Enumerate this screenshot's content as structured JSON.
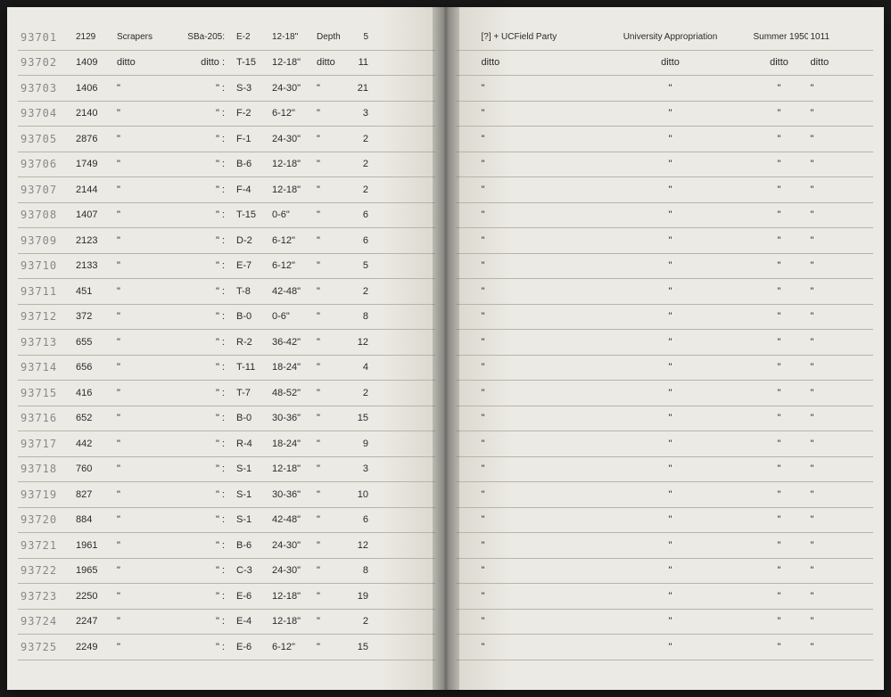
{
  "header": {
    "left": {
      "id": "93701",
      "num": "2129",
      "desc": "Scrapers",
      "site": "SBa-205:",
      "unit": "E-2",
      "depth": "12-18\"",
      "dw": "Depth",
      "ct": "5"
    },
    "right": {
      "coll": "[?] + UCField Party",
      "fund": "University Appropriation",
      "season": "Summer 1950",
      "lot": "1011"
    }
  },
  "rows": [
    {
      "id": "93702",
      "num": "1409",
      "desc": "ditto",
      "site": "ditto :",
      "unit": "T-15",
      "depth": "12-18\"",
      "dw": "ditto",
      "ct": "11",
      "coll": "ditto",
      "fund": "ditto",
      "season": "ditto",
      "lot": "ditto"
    },
    {
      "id": "93703",
      "num": "1406",
      "desc": "\"",
      "site": "\" :",
      "unit": "S-3",
      "depth": "24-30\"",
      "dw": "\"",
      "ct": "21",
      "coll": "\"",
      "fund": "\"",
      "season": "\"",
      "lot": "\""
    },
    {
      "id": "93704",
      "num": "2140",
      "desc": "\"",
      "site": "\" :",
      "unit": "F-2",
      "depth": "6-12\"",
      "dw": "\"",
      "ct": "3",
      "coll": "\"",
      "fund": "\"",
      "season": "\"",
      "lot": "\""
    },
    {
      "id": "93705",
      "num": "2876",
      "desc": "\"",
      "site": "\" :",
      "unit": "F-1",
      "depth": "24-30\"",
      "dw": "\"",
      "ct": "2",
      "coll": "\"",
      "fund": "\"",
      "season": "\"",
      "lot": "\""
    },
    {
      "id": "93706",
      "num": "1749",
      "desc": "\"",
      "site": "\" :",
      "unit": "B-6",
      "depth": "12-18\"",
      "dw": "\"",
      "ct": "2",
      "coll": "\"",
      "fund": "\"",
      "season": "\"",
      "lot": "\""
    },
    {
      "id": "93707",
      "num": "2144",
      "desc": "\"",
      "site": "\" :",
      "unit": "F-4",
      "depth": "12-18\"",
      "dw": "\"",
      "ct": "2",
      "coll": "\"",
      "fund": "\"",
      "season": "\"",
      "lot": "\""
    },
    {
      "id": "93708",
      "num": "1407",
      "desc": "\"",
      "site": "\" :",
      "unit": "T-15",
      "depth": "0-6\"",
      "dw": "\"",
      "ct": "6",
      "coll": "\"",
      "fund": "\"",
      "season": "\"",
      "lot": "\""
    },
    {
      "id": "93709",
      "num": "2123",
      "desc": "\"",
      "site": "\" :",
      "unit": "D-2",
      "depth": "6-12\"",
      "dw": "\"",
      "ct": "6",
      "coll": "\"",
      "fund": "\"",
      "season": "\"",
      "lot": "\""
    },
    {
      "id": "93710",
      "num": "2133",
      "desc": "\"",
      "site": "\" :",
      "unit": "E-7",
      "depth": "6-12\"",
      "dw": "\"",
      "ct": "5",
      "coll": "\"",
      "fund": "\"",
      "season": "\"",
      "lot": "\""
    },
    {
      "id": "93711",
      "num": "451",
      "desc": "\"",
      "site": "\" :",
      "unit": "T-8",
      "depth": "42-48\"",
      "dw": "\"",
      "ct": "2",
      "coll": "\"",
      "fund": "\"",
      "season": "\"",
      "lot": "\""
    },
    {
      "id": "93712",
      "num": "372",
      "desc": "\"",
      "site": "\" :",
      "unit": "B-0",
      "depth": "0-6\"",
      "dw": "\"",
      "ct": "8",
      "coll": "\"",
      "fund": "\"",
      "season": "\"",
      "lot": "\""
    },
    {
      "id": "93713",
      "num": "655",
      "desc": "\"",
      "site": "\" :",
      "unit": "R-2",
      "depth": "36-42\"",
      "dw": "\"",
      "ct": "12",
      "coll": "\"",
      "fund": "\"",
      "season": "\"",
      "lot": "\""
    },
    {
      "id": "93714",
      "num": "656",
      "desc": "\"",
      "site": "\" :",
      "unit": "T-11",
      "depth": "18-24\"",
      "dw": "\"",
      "ct": "4",
      "coll": "\"",
      "fund": "\"",
      "season": "\"",
      "lot": "\""
    },
    {
      "id": "93715",
      "num": "416",
      "desc": "\"",
      "site": "\" :",
      "unit": "T-7",
      "depth": "48-52\"",
      "dw": "\"",
      "ct": "2",
      "coll": "\"",
      "fund": "\"",
      "season": "\"",
      "lot": "\""
    },
    {
      "id": "93716",
      "num": "652",
      "desc": "\"",
      "site": "\" :",
      "unit": "B-0",
      "depth": "30-36\"",
      "dw": "\"",
      "ct": "15",
      "coll": "\"",
      "fund": "\"",
      "season": "\"",
      "lot": "\""
    },
    {
      "id": "93717",
      "num": "442",
      "desc": "\"",
      "site": "\" :",
      "unit": "R-4",
      "depth": "18-24\"",
      "dw": "\"",
      "ct": "9",
      "coll": "\"",
      "fund": "\"",
      "season": "\"",
      "lot": "\""
    },
    {
      "id": "93718",
      "num": "760",
      "desc": "\"",
      "site": "\" :",
      "unit": "S-1",
      "depth": "12-18\"",
      "dw": "\"",
      "ct": "3",
      "coll": "\"",
      "fund": "\"",
      "season": "\"",
      "lot": "\""
    },
    {
      "id": "93719",
      "num": "827",
      "desc": "\"",
      "site": "\" :",
      "unit": "S-1",
      "depth": "30-36\"",
      "dw": "\"",
      "ct": "10",
      "coll": "\"",
      "fund": "\"",
      "season": "\"",
      "lot": "\""
    },
    {
      "id": "93720",
      "num": "884",
      "desc": "\"",
      "site": "\" :",
      "unit": "S-1",
      "depth": "42-48\"",
      "dw": "\"",
      "ct": "6",
      "coll": "\"",
      "fund": "\"",
      "season": "\"",
      "lot": "\""
    },
    {
      "id": "93721",
      "num": "1961",
      "desc": "\"",
      "site": "\" :",
      "unit": "B-6",
      "depth": "24-30\"",
      "dw": "\"",
      "ct": "12",
      "coll": "\"",
      "fund": "\"",
      "season": "\"",
      "lot": "\""
    },
    {
      "id": "93722",
      "num": "1965",
      "desc": "\"",
      "site": "\" :",
      "unit": "C-3",
      "depth": "24-30\"",
      "dw": "\"",
      "ct": "8",
      "coll": "\"",
      "fund": "\"",
      "season": "\"",
      "lot": "\""
    },
    {
      "id": "93723",
      "num": "2250",
      "desc": "\"",
      "site": "\" :",
      "unit": "E-6",
      "depth": "12-18\"",
      "dw": "\"",
      "ct": "19",
      "coll": "\"",
      "fund": "\"",
      "season": "\"",
      "lot": "\""
    },
    {
      "id": "93724",
      "num": "2247",
      "desc": "\"",
      "site": "\" :",
      "unit": "E-4",
      "depth": "12-18\"",
      "dw": "\"",
      "ct": "2",
      "coll": "\"",
      "fund": "\"",
      "season": "\"",
      "lot": "\""
    },
    {
      "id": "93725",
      "num": "2249",
      "desc": "\"",
      "site": "\" :",
      "unit": "E-6",
      "depth": "6-12\"",
      "dw": "\"",
      "ct": "15",
      "coll": "\"",
      "fund": "\"",
      "season": "\"",
      "lot": "\""
    }
  ]
}
